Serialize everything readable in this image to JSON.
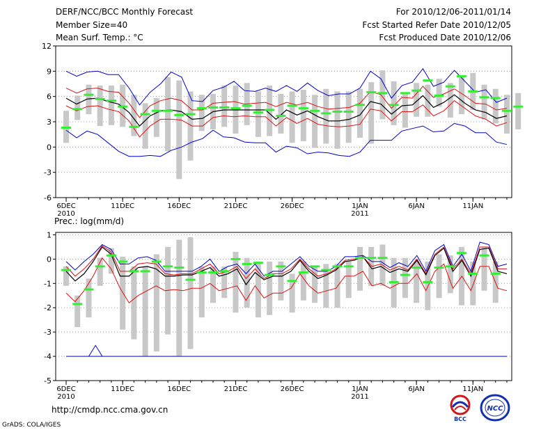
{
  "header": {
    "title": "DERF/NCC/BCC Monthly Forecast",
    "member_size": "Member Size=40",
    "variable": "Mean Surf. Temp.: °C",
    "period": "For 2010/12/06-2011/01/14",
    "fcst_started": "Fcst Started Refer Date 2010/12/05",
    "fcst_produced": "Fcst Produced Date 2010/12/06"
  },
  "footer": {
    "url": "http://cmdp.ncc.cma.gov.cn",
    "grads": "GrADS: COLA/IGES",
    "logo_bcc": "BCC",
    "logo_ncc": "NCC"
  },
  "colors": {
    "mean": "#000000",
    "spread": "#e01010",
    "extreme": "#0000d0",
    "obs": "#33ee33",
    "box": "#c8c8c8"
  },
  "chart_data": [
    {
      "type": "line",
      "title": "Mean Surf. Temp.: °C",
      "ylim": [
        -6,
        12
      ],
      "yticks": [
        -6,
        -3,
        0,
        3,
        6,
        9,
        12
      ],
      "xlim": [
        0,
        39
      ],
      "xtick_labels": [
        {
          "day": 0,
          "label": "6DEC",
          "sub": "2010"
        },
        {
          "day": 5,
          "label": "11DEC",
          "sub": ""
        },
        {
          "day": 10,
          "label": "16DEC",
          "sub": ""
        },
        {
          "day": 15,
          "label": "21DEC",
          "sub": ""
        },
        {
          "day": 20,
          "label": "26DEC",
          "sub": ""
        },
        {
          "day": 26,
          "label": "1JAN",
          "sub": "2011"
        },
        {
          "day": 31,
          "label": "6JAN",
          "sub": ""
        },
        {
          "day": 36,
          "label": "11JAN",
          "sub": ""
        }
      ],
      "series": [
        {
          "name": "max",
          "color": "#0000d0",
          "values": [
            9,
            8.4,
            8.9,
            9,
            8.6,
            8.6,
            7,
            5,
            6.5,
            7.5,
            8.9,
            8.3,
            5.5,
            5.4,
            6.7,
            7.1,
            7.8,
            6.7,
            6.6,
            7,
            6.6,
            7.3,
            6.6,
            7.6,
            6.7,
            6.1,
            6.3,
            6.3,
            7,
            9,
            8.1,
            5.8,
            7.3,
            7.7,
            9.3,
            7.2,
            7.7,
            9.1,
            7.8,
            6.5,
            6.8,
            5.3,
            5.8
          ]
        },
        {
          "name": "upper",
          "color": "#e01010",
          "values": [
            7,
            6.4,
            6.9,
            7,
            6.6,
            6.5,
            5.2,
            3.5,
            4.9,
            5.5,
            5.8,
            5.5,
            4.4,
            4.4,
            5.2,
            5.3,
            5.4,
            5.1,
            5.2,
            5.3,
            4.8,
            5.3,
            5,
            5.3,
            4.8,
            4.5,
            4.6,
            4.7,
            5.2,
            6.6,
            6.2,
            4.6,
            5.9,
            5.8,
            7.2,
            5.9,
            6.3,
            6.9,
            6.1,
            5.2,
            5.1,
            4.4,
            4.6
          ]
        },
        {
          "name": "mean",
          "color": "#000000",
          "values": [
            5.8,
            5.1,
            5.7,
            5.8,
            5.4,
            5.1,
            4.1,
            2.5,
            3.7,
            4.3,
            4.4,
            4.2,
            3.3,
            3.4,
            4.2,
            4.4,
            4.4,
            4.4,
            4.4,
            4.4,
            3.3,
            4.4,
            3.8,
            4.3,
            3.6,
            3.1,
            3.1,
            3.3,
            3.8,
            5.4,
            5.1,
            3.9,
            4.9,
            5,
            6.1,
            4.7,
            5.3,
            6.2,
            5.2,
            4.4,
            4.1,
            3.4,
            3.7
          ]
        },
        {
          "name": "lower",
          "color": "#e01010",
          "values": [
            4.9,
            4.3,
            4.8,
            4.9,
            4.5,
            4.2,
            3.1,
            1.2,
            2.5,
            3.3,
            3.3,
            3.2,
            2.5,
            2.5,
            3.5,
            3.7,
            3.6,
            3.7,
            3.6,
            3.6,
            2.5,
            3.5,
            2.8,
            3.4,
            2.7,
            2.5,
            2.4,
            2.5,
            2.7,
            4.5,
            4.3,
            3.1,
            4.2,
            4.2,
            5,
            3.7,
            4.3,
            5.5,
            4.6,
            3.7,
            3.3,
            2.5,
            2.9
          ]
        },
        {
          "name": "min",
          "color": "#0000d0",
          "values": [
            2,
            1.1,
            1.9,
            1.5,
            0.5,
            -0.5,
            -1.1,
            -1.1,
            -1,
            -1.1,
            -0.4,
            0,
            0.6,
            1,
            2,
            1.2,
            1.1,
            0.6,
            0.5,
            0.5,
            -0.6,
            0.1,
            -0.1,
            -0.8,
            -0.6,
            -0.7,
            -1,
            -1.1,
            -0.6,
            0.8,
            0.8,
            0.8,
            1.9,
            2.2,
            2.5,
            1.8,
            1.9,
            2.8,
            2.5,
            1.7,
            1.7,
            0.6,
            0.3
          ]
        }
      ],
      "obs": [
        2.3,
        4.5,
        6.2,
        5.7,
        5.5,
        4.8,
        2.4,
        3.9,
        4.3,
        4.3,
        3.8,
        3.9,
        4.6,
        4.7,
        4.7,
        4.6,
        4.9,
        4.1,
        4.4,
        3.7,
        4.9,
        4.6,
        4.3,
        4,
        4.2,
        4.2,
        5,
        6.5,
        6.4,
        5,
        6.4,
        6.7,
        7.9,
        6.1,
        7.2,
        8.4,
        6.6,
        5.9,
        5.8,
        4.3,
        4.8
      ],
      "boxes": [
        [
          0.5,
          4.3
        ],
        [
          3.2,
          6.1
        ],
        [
          3.9,
          7.4
        ],
        [
          2.5,
          7.3
        ],
        [
          2.6,
          7.3
        ],
        [
          2.4,
          7.4
        ],
        [
          1.3,
          6.2
        ],
        [
          -0.2,
          5.2
        ],
        [
          1.2,
          5.8
        ],
        [
          -0.5,
          8.3
        ],
        [
          -3.8,
          7.9
        ],
        [
          -1.6,
          6.6
        ],
        [
          1.9,
          6.2
        ],
        [
          2.1,
          6.3
        ],
        [
          2.4,
          7.3
        ],
        [
          1.6,
          7.3
        ],
        [
          2.6,
          7.6
        ],
        [
          1.2,
          6.6
        ],
        [
          1.3,
          7.3
        ],
        [
          1.6,
          6.3
        ],
        [
          0.5,
          6.6
        ],
        [
          0.7,
          6.8
        ],
        [
          -0.1,
          6.2
        ],
        [
          0.4,
          6.9
        ],
        [
          -0.2,
          6.6
        ],
        [
          0.5,
          6.6
        ],
        [
          1.1,
          6.9
        ],
        [
          0.4,
          7.7
        ],
        [
          3.3,
          9.1
        ],
        [
          2.6,
          7.8
        ],
        [
          2.3,
          6.4
        ],
        [
          3.6,
          7.6
        ],
        [
          3.6,
          7.4
        ],
        [
          4.8,
          8.1
        ],
        [
          3.5,
          7.6
        ],
        [
          3.9,
          8.4
        ],
        [
          4.4,
          8.8
        ],
        [
          3.3,
          7.4
        ],
        [
          2.8,
          6.9
        ],
        [
          1.6,
          6.2
        ],
        [
          2.1,
          6.4
        ]
      ]
    },
    {
      "type": "line",
      "title": "Prec.: log(mm/d)",
      "ylim": [
        -5,
        1.1
      ],
      "yticks": [
        -5,
        -4,
        -3,
        -2,
        -1,
        0,
        1
      ],
      "xlim": [
        0,
        39
      ],
      "xtick_labels": [
        {
          "day": 0,
          "label": "6DEC",
          "sub": "2010"
        },
        {
          "day": 5,
          "label": "11DEC",
          "sub": ""
        },
        {
          "day": 10,
          "label": "16DEC",
          "sub": ""
        },
        {
          "day": 15,
          "label": "21DEC",
          "sub": ""
        },
        {
          "day": 20,
          "label": "26DEC",
          "sub": ""
        },
        {
          "day": 26,
          "label": "1JAN",
          "sub": "2011"
        },
        {
          "day": 31,
          "label": "6JAN",
          "sub": ""
        },
        {
          "day": 36,
          "label": "11JAN",
          "sub": ""
        }
      ],
      "series": [
        {
          "name": "max",
          "color": "#0000d0",
          "values": [
            -0.1,
            -0.45,
            -0.1,
            0.2,
            0.6,
            0.4,
            -0.2,
            -0.2,
            0.05,
            0.1,
            -0.05,
            -0.5,
            -0.5,
            -0.5,
            -0.5,
            -0.3,
            0,
            -0.5,
            -0.3,
            -0.2,
            -0.6,
            -0.2,
            -0.7,
            -0.5,
            -0.5,
            -0.2,
            0.1,
            -0.3,
            -0.5,
            -0.5,
            -0.3,
            0.1,
            0.1,
            0.15,
            -0.1,
            -0.1,
            -0.35,
            -0.15,
            -0.3,
            0.15,
            -0.5,
            0.35,
            0.6,
            -0.3,
            0.2,
            -0.5,
            0.7,
            0.6,
            -0.3,
            -0.2
          ]
        },
        {
          "name": "upper",
          "color": "#e01010",
          "values": [
            -0.3,
            -0.7,
            -0.4,
            0,
            0.55,
            0.3,
            -0.5,
            -0.5,
            -0.2,
            -0.15,
            -0.2,
            -0.6,
            -0.65,
            -0.6,
            -0.6,
            -0.4,
            -0.2,
            -0.6,
            -0.5,
            -0.3,
            -0.8,
            -0.4,
            -0.8,
            -0.6,
            -0.6,
            -0.4,
            0,
            -0.4,
            -0.7,
            -0.6,
            -0.4,
            -0.05,
            0,
            0.1,
            -0.3,
            -0.2,
            -0.45,
            -0.3,
            -0.45,
            0,
            -0.6,
            0.2,
            0.5,
            -0.4,
            0,
            -0.6,
            0.5,
            0.5,
            -0.4,
            -0.4
          ]
        },
        {
          "name": "mean",
          "color": "#000000",
          "values": [
            -0.5,
            -0.9,
            -0.6,
            -0.1,
            0.5,
            0.2,
            -0.7,
            -0.7,
            -0.35,
            -0.3,
            -0.4,
            -0.7,
            -0.7,
            -0.65,
            -0.65,
            -0.5,
            -0.35,
            -0.7,
            -0.6,
            -0.4,
            -1.05,
            -0.55,
            -0.85,
            -0.7,
            -0.7,
            -0.5,
            -0.05,
            -0.5,
            -0.8,
            -0.65,
            -0.45,
            -0.1,
            -0.05,
            0.1,
            -0.4,
            -0.3,
            -0.55,
            -0.4,
            -0.5,
            -0.05,
            -0.65,
            0.15,
            0.45,
            -0.5,
            -0.05,
            -0.7,
            0.4,
            0.45,
            -0.5,
            -0.6
          ]
        },
        {
          "name": "lower",
          "color": "#e01010",
          "values": [
            -1.4,
            -1.75,
            -1.3,
            -0.7,
            0.05,
            -0.4,
            -1.2,
            -1.8,
            -1.5,
            -1.3,
            -1.1,
            -1.3,
            -1.25,
            -1.3,
            -1.2,
            -1.2,
            -1.0,
            -1.3,
            -1.2,
            -1.1,
            -1.7,
            -1.1,
            -1.6,
            -1.4,
            -1.4,
            -1.2,
            -0.6,
            -1.1,
            -1.4,
            -1.3,
            -1.2,
            -0.7,
            -0.7,
            -0.5,
            -1.1,
            -1.0,
            -1.2,
            -1.0,
            -1.0,
            -0.6,
            -1.3,
            -0.5,
            -0.2,
            -1.2,
            -0.7,
            -1.3,
            -0.3,
            -0.3,
            -1.2,
            -1.3
          ]
        },
        {
          "name": "min",
          "color": "#0000d0",
          "values": [
            -4,
            -4,
            -4,
            -4,
            -4,
            -4,
            -4,
            -4,
            -4,
            -4,
            -4,
            -4,
            -4,
            -4,
            -4,
            -4,
            -4,
            -4,
            -4,
            -4,
            -4,
            -4,
            -4,
            -4,
            -4,
            -4,
            -4,
            -4,
            -4,
            -4,
            -4,
            -4,
            -4,
            -4,
            -4,
            -4,
            -4,
            -4,
            -4,
            -4,
            -4,
            -4,
            -4,
            -4,
            -4,
            -4,
            -4,
            -4,
            -4,
            -4
          ]
        }
      ],
      "min_spike": [
        {
          "x": 2,
          "y": -4
        },
        {
          "x": 2.6,
          "y": -3.55
        },
        {
          "x": 3.2,
          "y": -4
        }
      ],
      "obs": [
        -0.45,
        -1.85,
        -1.25,
        -0.3,
        0.15,
        -0.1,
        -0.5,
        -0.5,
        -0.1,
        -0.3,
        -0.35,
        -0.85,
        -0.55,
        -0.55,
        -0.5,
        0,
        -0.2,
        -0.15,
        -0.65,
        -0.3,
        -0.9,
        -0.55,
        -0.3,
        -0.45,
        -0.3,
        -0.3,
        0.05,
        0.05,
        0.05,
        -0.95,
        -0.65,
        -0.35,
        -0.95,
        -0.35,
        -0.3,
        0.25,
        -0.6,
        0.15,
        -0.6
      ],
      "boxes": [
        [
          -1.1,
          -0.3
        ],
        [
          -2.8,
          -1.5
        ],
        [
          -2.4,
          -0.8
        ],
        [
          -1.1,
          0.05
        ],
        [
          -0.6,
          0.45
        ],
        [
          -2.9,
          0.1
        ],
        [
          -3.3,
          -0.3
        ],
        [
          -4,
          -0.3
        ],
        [
          -3.8,
          0.2
        ],
        [
          -3.1,
          0.5
        ],
        [
          -4,
          0.8
        ],
        [
          -3.7,
          0.9
        ],
        [
          -2.4,
          -0.3
        ],
        [
          -1.8,
          -0.3
        ],
        [
          -1.6,
          -0.3
        ],
        [
          -2.2,
          0.3
        ],
        [
          -2.0,
          0.05
        ],
        [
          -2.4,
          -0.1
        ],
        [
          -2.3,
          -0.1
        ],
        [
          -1.7,
          -0.1
        ],
        [
          -2.2,
          -0.6
        ],
        [
          -1.7,
          -0.1
        ],
        [
          -1.8,
          -0.3
        ],
        [
          -2.0,
          -0.2
        ],
        [
          -2.0,
          -0.2
        ],
        [
          -1.6,
          -0.1
        ],
        [
          -1.3,
          0.5
        ],
        [
          -1.1,
          0.5
        ],
        [
          -1.1,
          0.6
        ],
        [
          -2.0,
          0.05
        ],
        [
          -1.6,
          0.05
        ],
        [
          -1.8,
          -0.1
        ],
        [
          -2.1,
          -0.1
        ],
        [
          -1.6,
          0.2
        ],
        [
          -1.4,
          0.15
        ],
        [
          -1.9,
          0.5
        ],
        [
          -1.9,
          -0.1
        ],
        [
          -1.3,
          0.5
        ],
        [
          -1.8,
          -0.1
        ]
      ]
    }
  ]
}
